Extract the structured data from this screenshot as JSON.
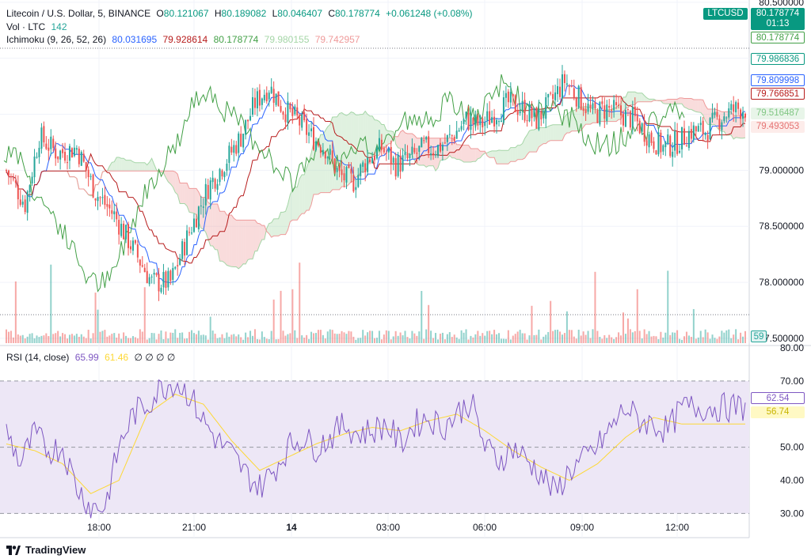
{
  "header": {
    "symbol": "Litecoin / U.S. Dollar, 5, BINANCE",
    "o_label": "O",
    "o": "80.121067",
    "h_label": "H",
    "h": "80.189082",
    "l_label": "L",
    "l": "80.046407",
    "c_label": "C",
    "c": "80.178774",
    "change": "+0.061248 (+0.08%)"
  },
  "volume_legend": {
    "label": "Vol · LTC",
    "value": "142"
  },
  "ichimoku_legend": {
    "label": "Ichimoku (9, 26, 52, 26)",
    "values": [
      "80.031695",
      "79.928614",
      "80.178774",
      "79.980155",
      "79.742957"
    ]
  },
  "rsi_legend": {
    "label": "RSI (14, close)",
    "value": "65.99",
    "ma": "61.46",
    "nulls": "∅ ∅ ∅ ∅"
  },
  "price_tags": {
    "symbol": "LTCUSD",
    "last": "80.178774",
    "countdown": "01:13",
    "chikou": "80.178774",
    "conversion": "79.986836",
    "base": "79.809998",
    "lead_b_right": "79.766851",
    "span_a": "79.516487",
    "span_b": "79.493053",
    "volume": "59"
  },
  "rsi_tags": {
    "rsi": "62.54",
    "ma": "56.74"
  },
  "brand": "TradingView",
  "colors": {
    "up": "#26a69a",
    "down": "#ef5350",
    "conversion": "#2962ff",
    "base": "#b71c1c",
    "lagging": "#43a047",
    "cloud_up": "#a5d6a7",
    "cloud_down": "#ef9a9a",
    "rsi": "#7e57c2",
    "rsi_ma": "#fdd835",
    "rsi_band": "#ede7f6"
  },
  "chart_data": [
    {
      "type": "candlestick",
      "title": "Litecoin / U.S. Dollar, 5, BINANCE",
      "yaxis_ticks": [
        "80.500000",
        "80.000000",
        "79.500000",
        "79.000000",
        "78.500000",
        "78.000000",
        "77.500000"
      ],
      "ylim": [
        77.45,
        80.52
      ],
      "xaxis_ticks": [
        "18:00",
        "21:00",
        "14",
        "03:00",
        "06:00",
        "09:00",
        "12:00"
      ],
      "close_path": [
        [
          0,
          79.0
        ],
        [
          8,
          78.7
        ],
        [
          14,
          79.3
        ],
        [
          22,
          79.15
        ],
        [
          30,
          79.2
        ],
        [
          38,
          78.8
        ],
        [
          46,
          78.6
        ],
        [
          54,
          78.3
        ],
        [
          62,
          78.0
        ],
        [
          70,
          78.0
        ],
        [
          78,
          78.45
        ],
        [
          86,
          78.85
        ],
        [
          94,
          79.1
        ],
        [
          100,
          79.3
        ],
        [
          106,
          79.6
        ],
        [
          112,
          79.75
        ],
        [
          118,
          79.55
        ],
        [
          124,
          79.45
        ],
        [
          130,
          79.3
        ],
        [
          136,
          79.2
        ],
        [
          142,
          78.95
        ],
        [
          148,
          78.9
        ],
        [
          154,
          79.1
        ],
        [
          160,
          79.2
        ],
        [
          166,
          79.05
        ],
        [
          172,
          79.1
        ],
        [
          178,
          79.2
        ],
        [
          184,
          79.2
        ],
        [
          190,
          79.3
        ],
        [
          196,
          79.45
        ],
        [
          202,
          79.4
        ],
        [
          208,
          79.5
        ],
        [
          214,
          79.6
        ],
        [
          220,
          79.55
        ],
        [
          226,
          79.45
        ],
        [
          232,
          79.6
        ],
        [
          238,
          79.8
        ],
        [
          244,
          79.65
        ],
        [
          250,
          79.5
        ],
        [
          256,
          79.55
        ],
        [
          262,
          79.5
        ],
        [
          268,
          79.45
        ],
        [
          274,
          79.3
        ],
        [
          280,
          79.2
        ],
        [
          286,
          79.25
        ],
        [
          292,
          79.35
        ],
        [
          298,
          79.35
        ],
        [
          306,
          79.5
        ],
        [
          312,
          79.55
        ]
      ],
      "volume_ylim": [
        0,
        1000
      ]
    },
    {
      "type": "line",
      "title": "RSI (14, close)",
      "yaxis_ticks": [
        "80.00",
        "70.00",
        "60.00",
        "50.00",
        "40.00",
        "30.00"
      ],
      "ylim": [
        27,
        80
      ],
      "bands": [
        30,
        50,
        70
      ],
      "rsi_path": [
        [
          0,
          55
        ],
        [
          6,
          45
        ],
        [
          12,
          54
        ],
        [
          18,
          49
        ],
        [
          24,
          50
        ],
        [
          30,
          38
        ],
        [
          36,
          32
        ],
        [
          42,
          32
        ],
        [
          48,
          50
        ],
        [
          54,
          60
        ],
        [
          60,
          63
        ],
        [
          66,
          68
        ],
        [
          72,
          70
        ],
        [
          78,
          66
        ],
        [
          84,
          58
        ],
        [
          90,
          52
        ],
        [
          96,
          48
        ],
        [
          102,
          42
        ],
        [
          108,
          38
        ],
        [
          114,
          43
        ],
        [
          120,
          50
        ],
        [
          126,
          53
        ],
        [
          132,
          50
        ],
        [
          138,
          53
        ],
        [
          144,
          57
        ],
        [
          150,
          54
        ],
        [
          156,
          55
        ],
        [
          162,
          57
        ],
        [
          168,
          51
        ],
        [
          174,
          57
        ],
        [
          180,
          59
        ],
        [
          186,
          56
        ],
        [
          192,
          60
        ],
        [
          198,
          64
        ],
        [
          204,
          50
        ],
        [
          210,
          46
        ],
        [
          216,
          50
        ],
        [
          222,
          46
        ],
        [
          228,
          42
        ],
        [
          234,
          36
        ],
        [
          240,
          43
        ],
        [
          246,
          46
        ],
        [
          252,
          50
        ],
        [
          258,
          56
        ],
        [
          264,
          62
        ],
        [
          270,
          58
        ],
        [
          276,
          57
        ],
        [
          282,
          55
        ],
        [
          288,
          62
        ]
      ],
      "ma_path": [
        [
          0,
          51
        ],
        [
          12,
          49
        ],
        [
          24,
          45
        ],
        [
          36,
          36
        ],
        [
          48,
          40
        ],
        [
          60,
          60
        ],
        [
          72,
          66
        ],
        [
          84,
          63
        ],
        [
          96,
          52
        ],
        [
          108,
          43
        ],
        [
          120,
          47
        ],
        [
          132,
          51
        ],
        [
          144,
          54
        ],
        [
          156,
          56
        ],
        [
          168,
          55
        ],
        [
          180,
          58
        ],
        [
          192,
          60
        ],
        [
          204,
          55
        ],
        [
          216,
          49
        ],
        [
          228,
          44
        ],
        [
          240,
          40
        ],
        [
          252,
          45
        ],
        [
          264,
          53
        ],
        [
          276,
          59
        ],
        [
          288,
          57
        ]
      ]
    }
  ]
}
